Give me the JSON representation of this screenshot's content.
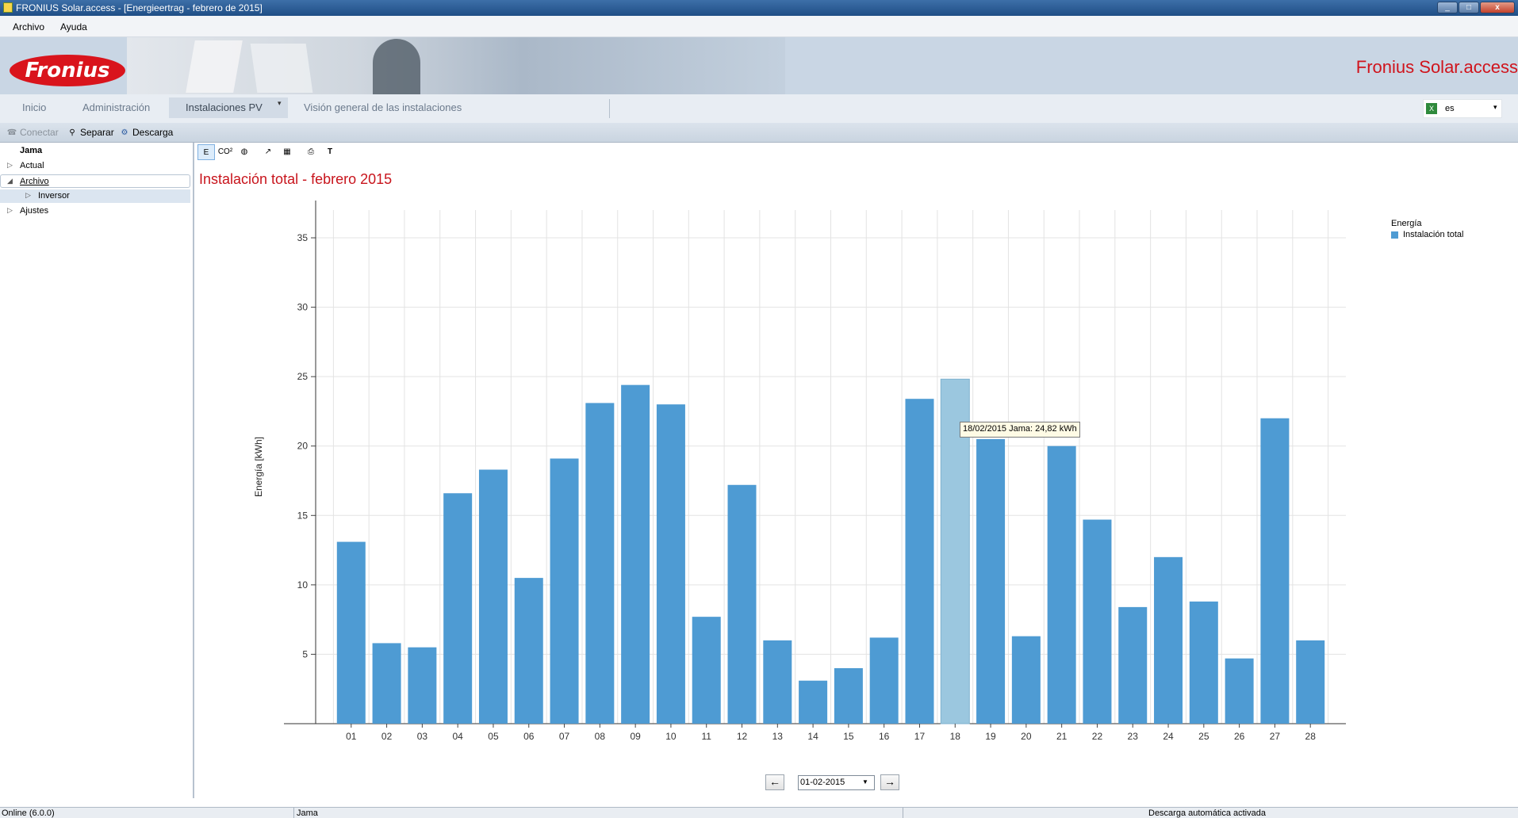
{
  "window": {
    "title": "FRONIUS Solar.access - [Energieertrag - febrero de 2015]",
    "min_glyph": "_",
    "max_glyph": "□",
    "close_glyph": "x"
  },
  "menu": [
    "Archivo",
    "Ayuda"
  ],
  "banner": {
    "logo_text": "Fronius",
    "brand": "Fronius Solar.access"
  },
  "tabs": [
    "Inicio",
    "Administración",
    "Instalaciones PV",
    "Visión general de las instalaciones"
  ],
  "language": {
    "value": "es"
  },
  "toolbar": {
    "connect": "Conectar",
    "disconnect": "Separar",
    "download": "Descarga"
  },
  "tree": {
    "root": "Jama",
    "items": [
      "Actual",
      "Archivo",
      "Inversor",
      "Ajustes"
    ]
  },
  "chart_toolbar": [
    "E",
    "CO²",
    "◍",
    "↗",
    "▦",
    "⎙",
    "T"
  ],
  "chart_title": "Instalación total - febrero 2015",
  "tooltip": "18/02/2015 Jama: 24,82 kWh",
  "nav": {
    "date": "01-02-2015",
    "prev": "←",
    "next": "→"
  },
  "status": {
    "left": "Online (6.0.0)",
    "middle": "Jama",
    "right": "Descarga automática activada"
  },
  "colors": {
    "bar": "#4e9bd3",
    "bar_highlight": "#9bc7df",
    "title_red": "#c8141c"
  },
  "chart_data": {
    "type": "bar",
    "ylabel": "Energía [kWh]",
    "ylim": [
      0,
      37
    ],
    "yticks": [
      5,
      10,
      15,
      20,
      25,
      30,
      35
    ],
    "categories": [
      "01",
      "02",
      "03",
      "04",
      "05",
      "06",
      "07",
      "08",
      "09",
      "10",
      "11",
      "12",
      "13",
      "14",
      "15",
      "16",
      "17",
      "18",
      "19",
      "20",
      "21",
      "22",
      "23",
      "24",
      "25",
      "26",
      "27",
      "28"
    ],
    "series": [
      {
        "name": "Instalación total",
        "values": [
          13.1,
          5.8,
          5.5,
          16.6,
          18.3,
          10.5,
          19.1,
          23.1,
          24.4,
          23.0,
          7.7,
          17.2,
          6.0,
          3.1,
          4.0,
          6.2,
          23.4,
          24.82,
          20.5,
          6.3,
          20.0,
          14.7,
          8.4,
          12.0,
          8.8,
          4.7,
          22.0,
          6.0
        ]
      }
    ],
    "highlight_index": 17,
    "legend": {
      "title": "Energía",
      "position": "top-right"
    },
    "grid": true
  }
}
